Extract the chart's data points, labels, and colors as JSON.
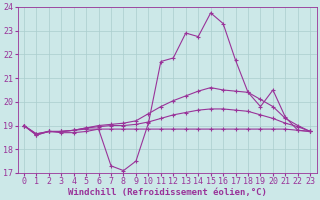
{
  "xlabel": "Windchill (Refroidissement éolien,°C)",
  "bg_color": "#cce8e8",
  "line_color": "#993399",
  "grid_color": "#b0d8d8",
  "xlim": [
    -0.5,
    23.5
  ],
  "ylim": [
    17,
    24
  ],
  "yticks": [
    17,
    18,
    19,
    20,
    21,
    22,
    23,
    24
  ],
  "xticks": [
    0,
    1,
    2,
    3,
    4,
    5,
    6,
    7,
    8,
    9,
    10,
    11,
    12,
    13,
    14,
    15,
    16,
    17,
    18,
    19,
    20,
    21,
    22,
    23
  ],
  "series": [
    [
      19.0,
      18.6,
      18.75,
      18.7,
      18.7,
      18.75,
      18.85,
      17.3,
      17.1,
      17.5,
      19.1,
      21.7,
      21.85,
      22.9,
      22.75,
      23.75,
      23.3,
      21.75,
      20.4,
      19.8,
      20.5,
      19.35,
      18.8,
      18.75
    ],
    [
      19.0,
      18.6,
      18.75,
      18.75,
      18.8,
      18.9,
      19.0,
      19.05,
      19.1,
      19.2,
      19.5,
      19.8,
      20.05,
      20.25,
      20.45,
      20.6,
      20.5,
      20.45,
      20.4,
      20.1,
      19.8,
      19.3,
      19.0,
      18.75
    ],
    [
      19.0,
      18.65,
      18.75,
      18.75,
      18.8,
      18.9,
      18.95,
      19.0,
      19.0,
      19.05,
      19.15,
      19.3,
      19.45,
      19.55,
      19.65,
      19.7,
      19.7,
      19.65,
      19.6,
      19.45,
      19.3,
      19.1,
      18.95,
      18.75
    ],
    [
      19.0,
      18.65,
      18.75,
      18.75,
      18.8,
      18.85,
      18.85,
      18.85,
      18.85,
      18.85,
      18.85,
      18.85,
      18.85,
      18.85,
      18.85,
      18.85,
      18.85,
      18.85,
      18.85,
      18.85,
      18.85,
      18.85,
      18.8,
      18.75
    ]
  ],
  "marker": "+",
  "markersize": 3,
  "linewidth": 0.8,
  "xlabel_fontsize": 6.5,
  "tick_fontsize": 6.0
}
